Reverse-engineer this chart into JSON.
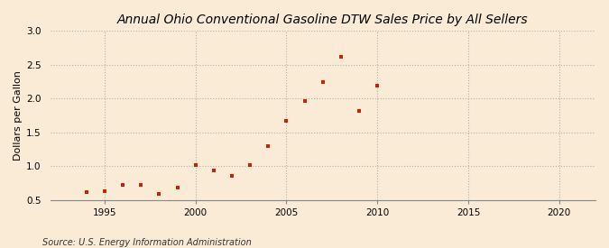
{
  "title": "Annual Ohio Conventional Gasoline DTW Sales Price by All Sellers",
  "ylabel": "Dollars per Gallon",
  "source_text": "Source: U.S. Energy Information Administration",
  "background_color": "#faebd7",
  "plot_bg_color": "#faebd7",
  "marker_color": "#cc2200",
  "years": [
    1994,
    1995,
    1996,
    1997,
    1998,
    1999,
    2000,
    2001,
    2002,
    2003,
    2004,
    2005,
    2006,
    2007,
    2008,
    2009,
    2010
  ],
  "values": [
    0.62,
    0.63,
    0.72,
    0.72,
    0.59,
    0.68,
    1.01,
    0.94,
    0.85,
    1.01,
    1.3,
    1.67,
    1.97,
    2.25,
    2.62,
    1.82,
    2.19
  ],
  "xlim": [
    1992,
    2022
  ],
  "ylim": [
    0.5,
    3.0
  ],
  "yticks": [
    0.5,
    1.0,
    1.5,
    2.0,
    2.5,
    3.0
  ],
  "xticks": [
    1995,
    2000,
    2005,
    2010,
    2015,
    2020
  ],
  "grid_color": "#b0b0b0",
  "title_fontsize": 10,
  "label_fontsize": 8,
  "tick_fontsize": 7.5,
  "source_fontsize": 7,
  "marker_size": 3.5
}
